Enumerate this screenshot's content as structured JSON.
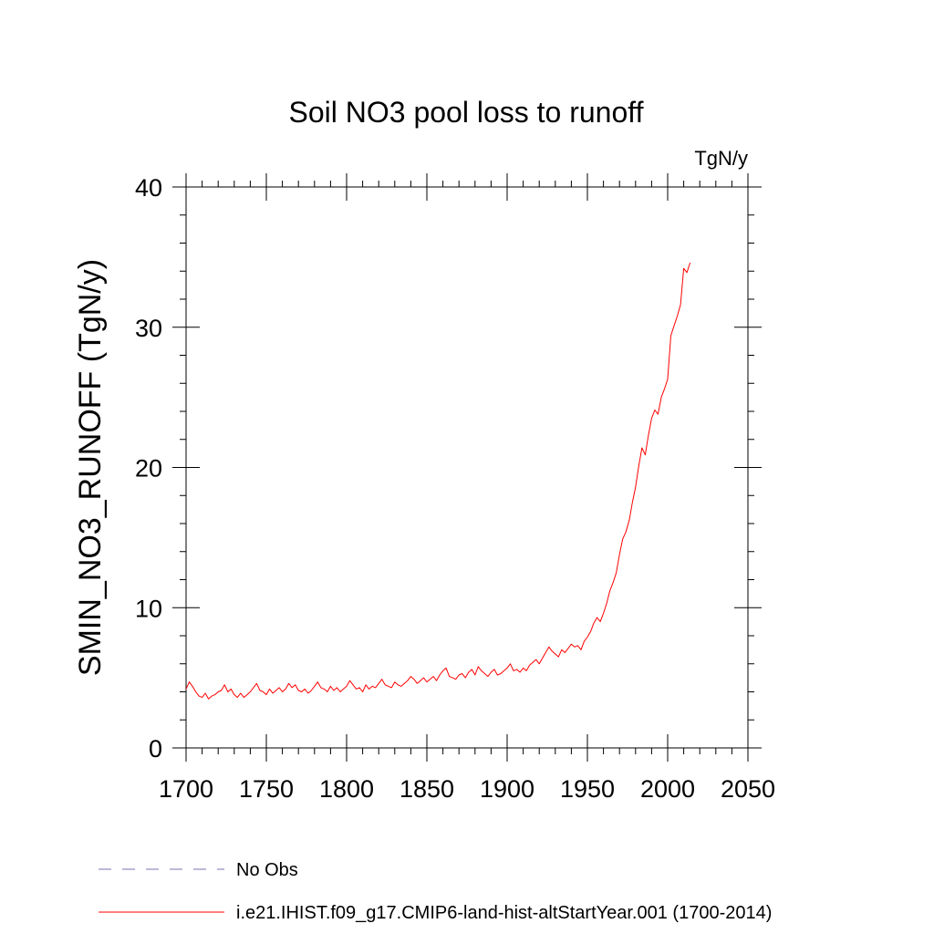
{
  "chart_data": {
    "type": "line",
    "title": "Soil NO3 pool loss to runoff",
    "units_label": "TgN/y",
    "ylabel": "SMIN_NO3_RUNOFF  (TgN/y)",
    "xlabel": "",
    "xlim": [
      1700,
      2050
    ],
    "ylim": [
      0,
      40
    ],
    "x_ticks": [
      1700,
      1750,
      1800,
      1850,
      1900,
      1950,
      2000,
      2050
    ],
    "y_ticks": [
      0,
      10,
      20,
      30,
      40
    ],
    "grid": false,
    "legend_placement": "bottom",
    "legend": [
      {
        "label": "No Obs",
        "color": "#7a73b5",
        "style": "dashed"
      },
      {
        "label": "i.e21.IHIST.f09_g17.CMIP6-land-hist-altStartYear.001 (1700-2014)",
        "color": "#ff0000",
        "style": "solid"
      }
    ],
    "series": [
      {
        "name": "i.e21.IHIST.f09_g17.CMIP6-land-hist-altStartYear.001 (1700-2014)",
        "color": "#ff0000",
        "x": [
          1700,
          1702,
          1704,
          1706,
          1708,
          1710,
          1712,
          1714,
          1716,
          1718,
          1720,
          1722,
          1724,
          1726,
          1728,
          1730,
          1732,
          1734,
          1736,
          1738,
          1740,
          1742,
          1744,
          1746,
          1748,
          1750,
          1752,
          1754,
          1756,
          1758,
          1760,
          1762,
          1764,
          1766,
          1768,
          1770,
          1772,
          1774,
          1776,
          1778,
          1780,
          1782,
          1784,
          1786,
          1788,
          1790,
          1792,
          1794,
          1796,
          1798,
          1800,
          1802,
          1804,
          1806,
          1808,
          1810,
          1812,
          1814,
          1816,
          1818,
          1820,
          1822,
          1824,
          1826,
          1828,
          1830,
          1832,
          1834,
          1836,
          1838,
          1840,
          1842,
          1844,
          1846,
          1848,
          1850,
          1852,
          1854,
          1856,
          1858,
          1860,
          1862,
          1864,
          1866,
          1868,
          1870,
          1872,
          1874,
          1876,
          1878,
          1880,
          1882,
          1884,
          1886,
          1888,
          1890,
          1892,
          1894,
          1896,
          1898,
          1900,
          1902,
          1904,
          1906,
          1908,
          1910,
          1912,
          1914,
          1916,
          1918,
          1920,
          1922,
          1924,
          1926,
          1928,
          1930,
          1932,
          1934,
          1936,
          1938,
          1940,
          1942,
          1944,
          1946,
          1948,
          1950,
          1952,
          1954,
          1956,
          1958,
          1960,
          1962,
          1964,
          1966,
          1968,
          1970,
          1972,
          1974,
          1976,
          1978,
          1980,
          1982,
          1984,
          1986,
          1988,
          1990,
          1992,
          1994,
          1996,
          1998,
          2000,
          2002,
          2004,
          2006,
          2008,
          2010,
          2012,
          2014
        ],
        "values": [
          4.2,
          4.7,
          4.4,
          4.0,
          3.7,
          3.6,
          3.9,
          3.5,
          3.7,
          3.8,
          4.0,
          4.1,
          4.5,
          4.0,
          4.2,
          3.8,
          3.6,
          3.9,
          3.6,
          3.8,
          4.0,
          4.3,
          4.6,
          4.1,
          4.0,
          3.8,
          4.2,
          3.9,
          4.1,
          4.3,
          4.0,
          4.2,
          4.6,
          4.3,
          4.5,
          4.1,
          4.0,
          4.2,
          3.9,
          4.1,
          4.4,
          4.7,
          4.3,
          4.2,
          4.0,
          4.4,
          4.1,
          4.3,
          4.0,
          4.2,
          4.4,
          4.8,
          4.5,
          4.2,
          4.3,
          4.0,
          4.5,
          4.2,
          4.4,
          4.3,
          4.6,
          4.9,
          4.5,
          4.4,
          4.3,
          4.7,
          4.5,
          4.4,
          4.6,
          4.8,
          5.1,
          4.9,
          4.6,
          4.8,
          5.0,
          4.7,
          4.9,
          5.1,
          4.8,
          5.2,
          5.5,
          5.7,
          5.1,
          5.0,
          4.9,
          5.2,
          5.3,
          5.0,
          5.4,
          5.6,
          5.2,
          5.8,
          5.5,
          5.3,
          5.1,
          5.4,
          5.6,
          5.2,
          5.3,
          5.5,
          5.7,
          6.0,
          5.5,
          5.6,
          5.4,
          5.7,
          5.5,
          5.9,
          6.1,
          6.3,
          6.0,
          6.4,
          6.8,
          7.2,
          6.9,
          6.7,
          6.5,
          7.0,
          6.8,
          7.1,
          7.4,
          7.2,
          7.3,
          7.0,
          7.6,
          7.9,
          8.3,
          8.9,
          9.3,
          9.0,
          9.6,
          10.3,
          11.2,
          11.8,
          12.5,
          13.8,
          14.9,
          15.4,
          16.2,
          17.5,
          18.6,
          20.1,
          21.4,
          20.9,
          22.3,
          23.5,
          24.1,
          23.8,
          25.0,
          25.6,
          26.3,
          29.4,
          30.1,
          30.8,
          31.6,
          34.2,
          33.9,
          34.6
        ]
      }
    ]
  }
}
